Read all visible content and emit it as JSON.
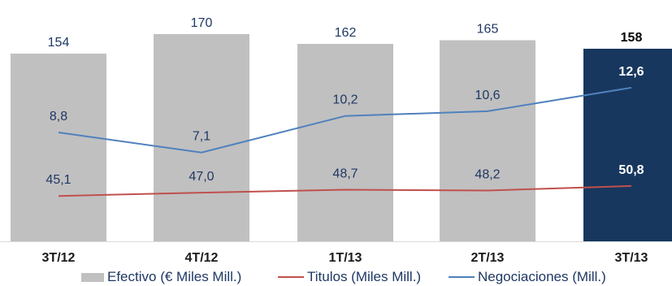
{
  "chart_data": {
    "type": "bar",
    "categories": [
      "3T/12",
      "4T/12",
      "1T/13",
      "2T/13",
      "3T/13"
    ],
    "series": [
      {
        "name": "Efectivo (€ Miles Mill.)",
        "type": "bar",
        "values": [
          154,
          170,
          162,
          165,
          158
        ],
        "labels": [
          "154",
          "170",
          "162",
          "165",
          "158"
        ],
        "color": "#c0c0c0",
        "highlight_color": "#17375e"
      },
      {
        "name": "Titulos (Miles Mill.)",
        "type": "line",
        "values": [
          45.1,
          47.0,
          48.7,
          48.2,
          50.8
        ],
        "labels": [
          "45,1",
          "47,0",
          "48,7",
          "48,2",
          "50,8"
        ],
        "color": "#c0504d"
      },
      {
        "name": "Negociaciones (Mill.)",
        "type": "line",
        "values": [
          8.8,
          7.1,
          10.2,
          10.6,
          12.6
        ],
        "labels": [
          "8,8",
          "7,1",
          "10,2",
          "10,6",
          "12,6"
        ],
        "color": "#4f81bd"
      }
    ],
    "highlight_index": 4,
    "legend_position": "bottom",
    "grid": false
  }
}
